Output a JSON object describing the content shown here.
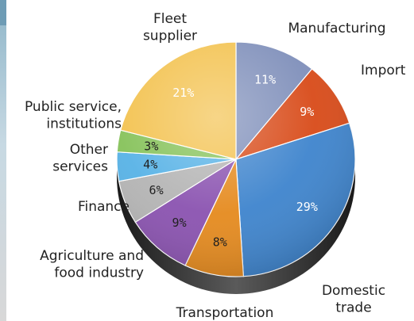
{
  "chart_data": {
    "type": "pie",
    "title": "",
    "slices": [
      {
        "label": "Manufacturing",
        "value": 11,
        "pct_text": "11%",
        "color": "#7f8fba",
        "text_color": "#ffffff"
      },
      {
        "label": "Import",
        "value": 9,
        "pct_text": "9%",
        "color": "#d84a18",
        "text_color": "#ffffff"
      },
      {
        "label": "Domestic trade",
        "value": 29,
        "pct_text": "29%",
        "color": "#3e84cd",
        "text_color": "#ffffff"
      },
      {
        "label": "Transportation",
        "value": 8,
        "pct_text": "8%",
        "color": "#e58a1e",
        "text_color": "#222222"
      },
      {
        "label": "Agriculture and food industry",
        "value": 9,
        "pct_text": "9%",
        "color": "#8a52b0",
        "text_color": "#222222"
      },
      {
        "label": "Finance",
        "value": 6,
        "pct_text": "6%",
        "color": "#b4b4b4",
        "text_color": "#222222"
      },
      {
        "label": "Other services",
        "value": 4,
        "pct_text": "4%",
        "color": "#57b2e6",
        "text_color": "#222222"
      },
      {
        "label": "Public service, institutions",
        "value": 3,
        "pct_text": "3%",
        "color": "#86c25a",
        "text_color": "#222222"
      },
      {
        "label": "Fleet supplier",
        "value": 21,
        "pct_text": "21%",
        "color": "#f3c24f",
        "text_color": "#ffffff"
      }
    ]
  },
  "labels": {
    "manufacturing": [
      "Manufacturing"
    ],
    "import": [
      "Import"
    ],
    "domestic_trade": [
      "Domestic",
      "trade"
    ],
    "transportation": [
      "Transportation"
    ],
    "agriculture": [
      "Agriculture and",
      "food industry"
    ],
    "finance": [
      "Finance"
    ],
    "other_services": [
      "Other",
      "services"
    ],
    "public_service": [
      "Public service,",
      "institutions"
    ],
    "fleet_supplier": [
      "Fleet",
      "supplier"
    ]
  }
}
